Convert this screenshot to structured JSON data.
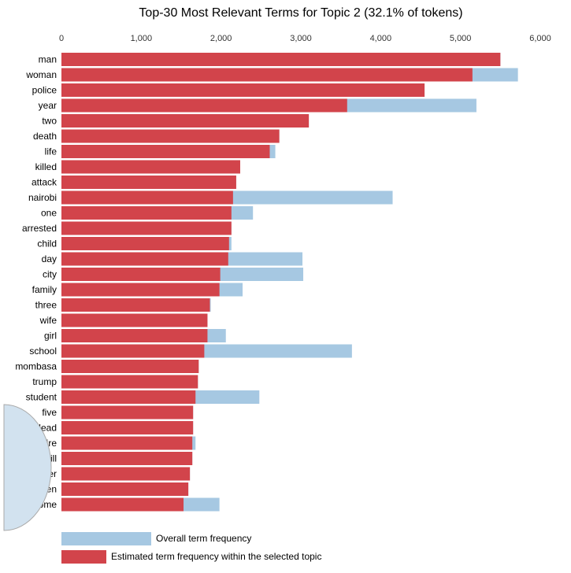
{
  "chart_data": {
    "type": "bar",
    "orientation": "horizontal",
    "title": "Top-30 Most Relevant Terms for Topic 2 (32.1% of tokens)",
    "title_partial": "Top-30 Most Relevant Terms for Topic 2 (32.1% of tokens)",
    "xlim": [
      0,
      6000
    ],
    "xticks": [
      0,
      1000,
      2000,
      3000,
      4000,
      5000,
      6000
    ],
    "xtick_labels": [
      "0",
      "1,000",
      "2,000",
      "3,000",
      "4,000",
      "5,000",
      "6,000"
    ],
    "categories": [
      "man",
      "woman",
      "police",
      "year",
      "two",
      "death",
      "life",
      "killed",
      "attack",
      "nairobi",
      "one",
      "arrested",
      "child",
      "day",
      "city",
      "family",
      "three",
      "wife",
      "girl",
      "school",
      "mombasa",
      "trump",
      "student",
      "five",
      "dead",
      "fire",
      "kill",
      "murder",
      "men",
      "home"
    ],
    "series": [
      {
        "name": "Overall term frequency",
        "color": "#a6c8e2",
        "values": [
          5500,
          5720,
          4550,
          5200,
          3100,
          2730,
          2680,
          2240,
          2190,
          4150,
          2400,
          2130,
          2130,
          3020,
          3030,
          2270,
          1870,
          1830,
          2060,
          3640,
          1720,
          1710,
          2480,
          1650,
          1650,
          1680,
          1640,
          1610,
          1590,
          1980
        ]
      },
      {
        "name": "Estimated term frequency within the selected topic",
        "color": "#d2444b",
        "values": [
          5500,
          5150,
          4550,
          3580,
          3100,
          2730,
          2610,
          2240,
          2190,
          2150,
          2130,
          2130,
          2100,
          2090,
          1990,
          1980,
          1860,
          1830,
          1830,
          1790,
          1720,
          1710,
          1680,
          1650,
          1650,
          1640,
          1640,
          1610,
          1590,
          1530
        ]
      }
    ],
    "legend_position": "bottom-left",
    "grid": false
  }
}
